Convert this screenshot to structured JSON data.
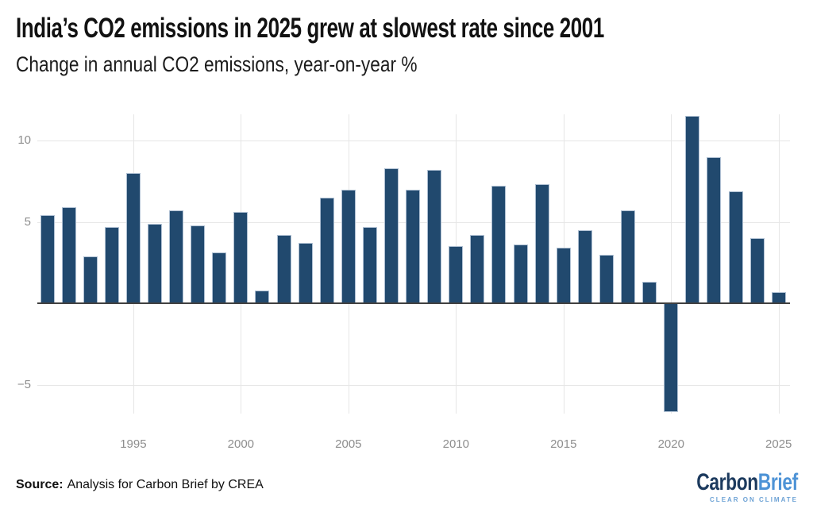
{
  "header": {
    "title": "India’s CO2 emissions in 2025 grew at slowest rate since 2001",
    "subtitle": "Change in annual CO2 emissions, year-on-year %"
  },
  "chart_data": {
    "type": "bar",
    "title": "India’s CO2 emissions in 2025 grew at slowest rate since 2001",
    "subtitle": "Change in annual CO2 emissions, year-on-year %",
    "unit": "%",
    "categories": [
      1991,
      1992,
      1993,
      1994,
      1995,
      1996,
      1997,
      1998,
      1999,
      2000,
      2001,
      2002,
      2003,
      2004,
      2005,
      2006,
      2007,
      2008,
      2009,
      2010,
      2011,
      2012,
      2013,
      2014,
      2015,
      2016,
      2017,
      2018,
      2019,
      2020,
      2021,
      2022,
      2023,
      2024,
      2025
    ],
    "values": [
      5.4,
      5.9,
      2.9,
      4.7,
      8.0,
      4.9,
      5.7,
      4.8,
      3.1,
      5.6,
      0.8,
      4.2,
      3.7,
      6.5,
      7.0,
      4.7,
      8.3,
      7.0,
      8.2,
      3.5,
      4.2,
      7.2,
      3.6,
      7.3,
      3.4,
      4.5,
      3.0,
      5.7,
      1.3,
      -6.7,
      11.5,
      9.0,
      6.9,
      4.0,
      0.7
    ],
    "xlabel": "",
    "ylabel": "",
    "ylim": [
      -6.8,
      11.6
    ],
    "grid": true,
    "legend": "none",
    "y_ticks": [
      {
        "value": 10,
        "label": "10"
      },
      {
        "value": 5,
        "label": "5"
      },
      {
        "value": -5,
        "label": "−5"
      }
    ],
    "x_ticks": [
      1995,
      2000,
      2005,
      2010,
      2015,
      2020,
      2025
    ],
    "colors": {
      "bar_fill": "#21496E",
      "bar_stroke": "#AEBFD2",
      "axis_line": "#404040",
      "gridline": "#E6E6E6",
      "tick_label": "#8E8E8E"
    }
  },
  "footer": {
    "source_label": "Source:",
    "source_text": "Analysis for Carbon Brief by CREA",
    "logo": {
      "word1": "Carbon",
      "word2": "Brief",
      "tagline": "CLEAR ON CLIMATE",
      "word1_color": "#1C3A5E",
      "word2_color": "#4E93D6",
      "tagline_color": "#6DA2D5"
    }
  }
}
